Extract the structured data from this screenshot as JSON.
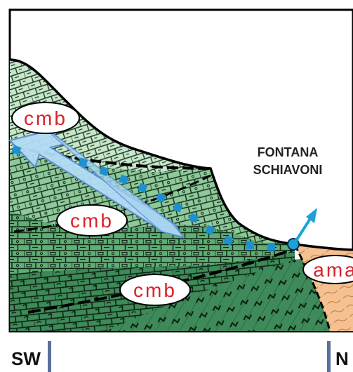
{
  "units": {
    "cmb_upper": "cmb",
    "cmb_middle": "cmb",
    "cmb_lower": "cmb",
    "ama": "ama"
  },
  "place": {
    "line1": "FONTANA",
    "line2": "SCHIAVONI"
  },
  "directions": {
    "left": "SW",
    "right": "N"
  },
  "colors": {
    "frame": "#000000",
    "light_green": "#c8e6c9",
    "mid_green": "#8fc99a",
    "green": "#5fae74",
    "dark_green": "#3e8a58",
    "orange": "#f6c190",
    "arrow_fill": "#b3dcf5",
    "arrow_stroke": "#5a8fd6",
    "flow_dots": "#1e90d0",
    "spring_arrow": "#1aa3d8",
    "label_red": "#d8232a"
  },
  "icons": {
    "groundwater_arrow": "arrow-icon",
    "spring_outflow": "arrow-up-right-icon",
    "spring_point": "circle-icon"
  }
}
